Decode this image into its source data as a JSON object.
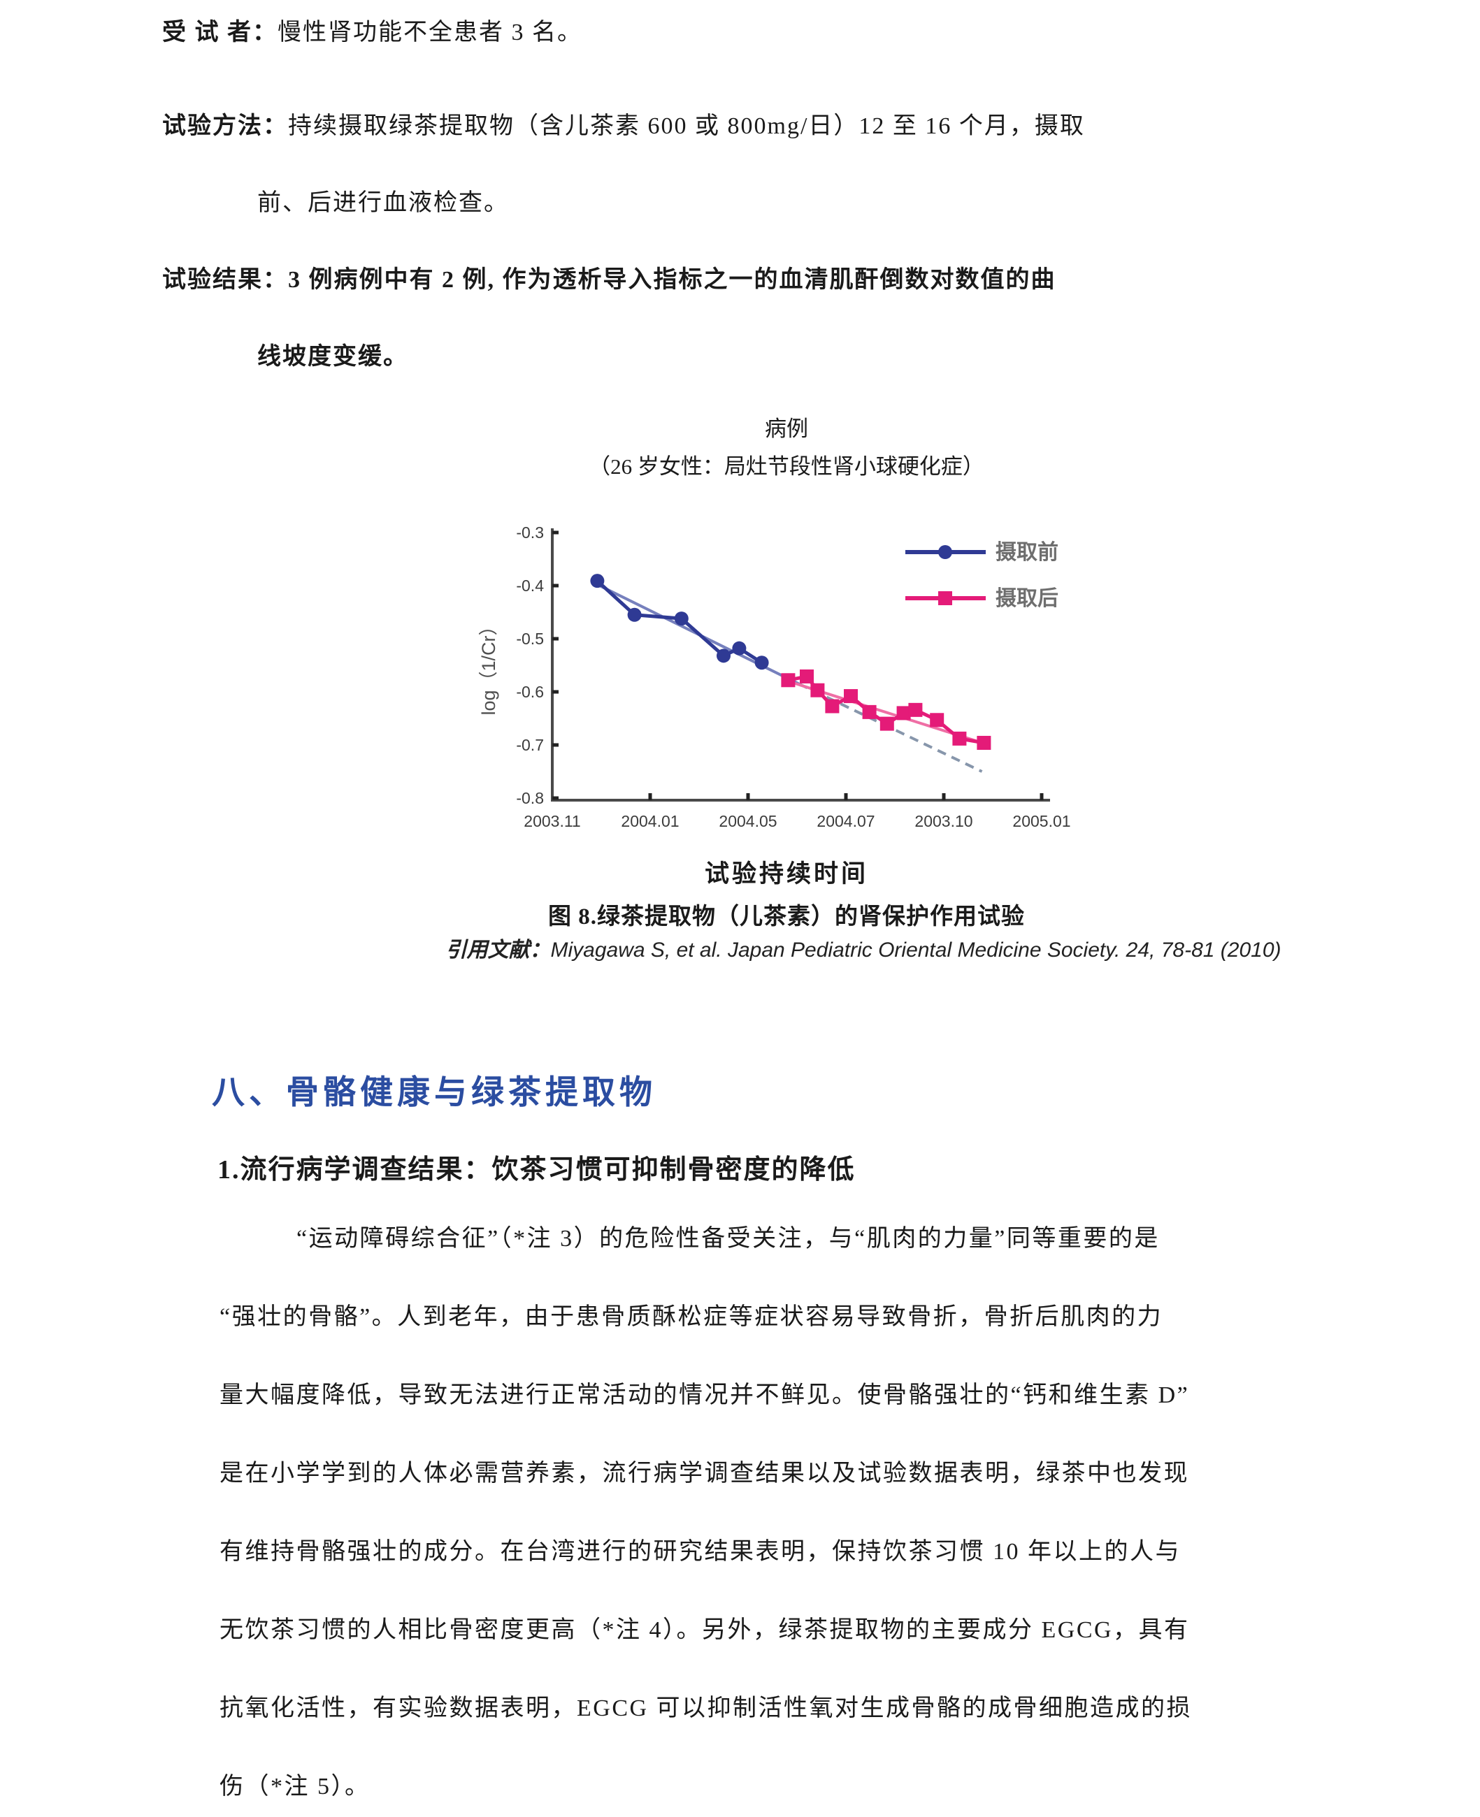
{
  "trial": {
    "subjects_label": "受 试 者：",
    "subjects_text": "慢性肾功能不全患者 3 名。",
    "method_label": "试验方法：",
    "method_text": "持续摄取绿茶提取物（含儿茶素 600 或 800mg/日）12 至 16 个月，摄取",
    "method_text_line2": "前、后进行血液检查。",
    "result_label": "试验结果：",
    "result_text": "3 例病例中有 2 例, 作为透析导入指标之一的血清肌酐倒数对数值的曲",
    "result_text_line2": "线坡度变缓。"
  },
  "figure": {
    "title": "病例",
    "subtitle": "（26 岁女性：局灶节段性肾小球硬化症）",
    "xaxis_caption": "试验持续时间",
    "caption": "图 8.绿茶提取物（儿茶素）的肾保护作用试验",
    "citation_label": "引用文献：",
    "citation": "Miyagawa S, et al. Japan Pediatric Oriental Medicine Society. 24, 78-81 (2010)"
  },
  "chart_data": {
    "type": "line",
    "title": "病例",
    "subtitle": "（26 岁女性：局灶节段性肾小球硬化症）",
    "xlabel": "试验持续时间",
    "ylabel": "log（1/Cr）",
    "x_tick_labels": [
      "2003.11",
      "2004.01",
      "2004.05",
      "2004.07",
      "2003.10",
      "2005.01"
    ],
    "y_ticks": [
      -0.3,
      -0.4,
      -0.5,
      -0.6,
      -0.7,
      -0.8
    ],
    "ylim": [
      -0.8,
      -0.3
    ],
    "xlim": [
      0,
      5
    ],
    "grid": false,
    "legend_position": "top-right",
    "series": [
      {
        "name": "摄取前",
        "marker": "circle",
        "color": "#2f3a94",
        "points": [
          [
            0.46,
            -0.391
          ],
          [
            0.84,
            -0.455
          ],
          [
            1.32,
            -0.462
          ],
          [
            1.75,
            -0.532
          ],
          [
            1.91,
            -0.518
          ],
          [
            2.14,
            -0.545
          ]
        ]
      },
      {
        "name": "摄取后",
        "marker": "square",
        "color": "#e41b78",
        "points": [
          [
            2.41,
            -0.578
          ],
          [
            2.6,
            -0.571
          ],
          [
            2.71,
            -0.597
          ],
          [
            2.86,
            -0.627
          ],
          [
            3.05,
            -0.608
          ],
          [
            3.24,
            -0.638
          ],
          [
            3.42,
            -0.66
          ],
          [
            3.59,
            -0.64
          ],
          [
            3.71,
            -0.634
          ],
          [
            3.93,
            -0.653
          ],
          [
            4.16,
            -0.688
          ],
          [
            4.41,
            -0.696
          ]
        ]
      }
    ],
    "trend_lines": [
      {
        "name": "pre-intake-trend",
        "color": "#7680bd",
        "style": "solid",
        "from": [
          0.46,
          -0.398
        ],
        "to": [
          2.52,
          -0.585
        ]
      },
      {
        "name": "pre-intake-extrapolation",
        "color": "#8796ab",
        "style": "dashed",
        "from": [
          2.52,
          -0.585
        ],
        "to": [
          4.39,
          -0.75
        ]
      },
      {
        "name": "post-intake-trend",
        "color": "#ef6fa5",
        "style": "solid",
        "from": [
          2.41,
          -0.58
        ],
        "to": [
          4.41,
          -0.697
        ]
      }
    ],
    "colors": {
      "axis": "#4a4a4a",
      "tick_text": "#3c3c3c",
      "legend_text": "#6e6e6e"
    }
  },
  "bone_section": {
    "heading": "八、骨骼健康与绿茶提取物",
    "heading_color": "#2b4da1",
    "subheading": "1.流行病学调查结果：饮茶习惯可抑制骨密度的降低",
    "paragraph_lines": [
      "“运动障碍综合征”（*注 3）的危险性备受关注，与“肌肉的力量”同等重要的是",
      "“强壮的骨骼”。人到老年，由于患骨质酥松症等症状容易导致骨折，骨折后肌肉的力",
      "量大幅度降低，导致无法进行正常活动的情况并不鲜见。使骨骼强壮的“钙和维生素 D”",
      "是在小学学到的人体必需营养素，流行病学调查结果以及试验数据表明，绿茶中也发现",
      "有维持骨骼强壮的成分。在台湾进行的研究结果表明，保持饮茶习惯 10 年以上的人与",
      "无饮茶习惯的人相比骨密度更高（*注 4）。另外，绿茶提取物的主要成分 EGCG，具有",
      "抗氧化活性，有实验数据表明，EGCG 可以抑制活性氧对生成骨骼的成骨细胞造成的损",
      "伤（*注 5）。"
    ]
  }
}
